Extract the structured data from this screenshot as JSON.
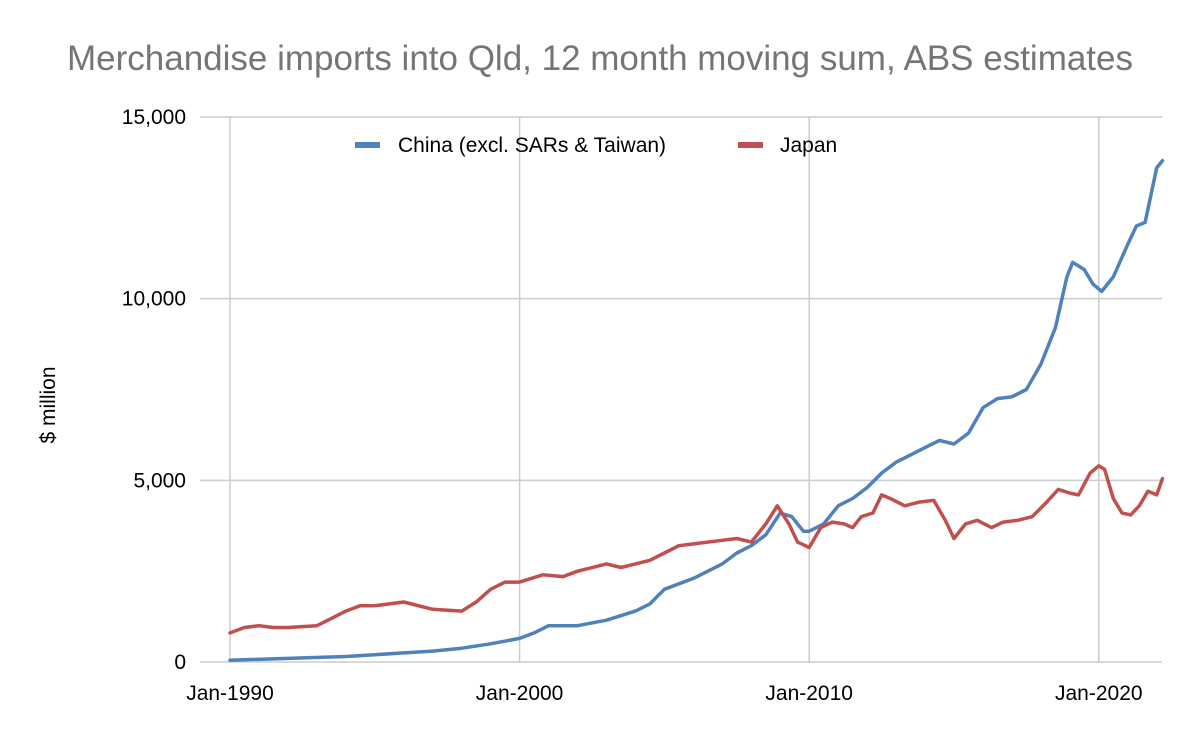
{
  "chart_data": {
    "type": "line",
    "title": "Merchandise imports into Qld, 12 month moving sum, ABS estimates",
    "xlabel": "",
    "ylabel": "$ million",
    "ylim": [
      0,
      15000
    ],
    "xlim": [
      1990.0,
      2022.2
    ],
    "y_ticks": [
      0,
      5000,
      10000,
      15000
    ],
    "y_tick_labels": [
      "0",
      "5,000",
      "10,000",
      "15,000"
    ],
    "x_ticks": [
      1990,
      2000,
      2010,
      2020
    ],
    "x_tick_labels": [
      "Jan-1990",
      "Jan-2000",
      "Jan-2010",
      "Jan-2020"
    ],
    "grid": true,
    "legend_position": "top",
    "series": [
      {
        "name": "China (excl. SARs & Taiwan)",
        "color": "#4f81bd",
        "x": [
          1990.0,
          1992.0,
          1994.0,
          1995.0,
          1996.0,
          1997.0,
          1998.0,
          1999.0,
          2000.0,
          2000.5,
          2001.0,
          2001.5,
          2002.0,
          2003.0,
          2004.0,
          2004.5,
          2005.0,
          2006.0,
          2007.0,
          2007.5,
          2008.0,
          2008.5,
          2009.0,
          2009.4,
          2009.8,
          2010.0,
          2010.5,
          2011.0,
          2011.5,
          2012.0,
          2012.5,
          2013.0,
          2013.5,
          2014.0,
          2014.5,
          2015.0,
          2015.5,
          2016.0,
          2016.5,
          2017.0,
          2017.5,
          2018.0,
          2018.5,
          2018.9,
          2019.1,
          2019.5,
          2019.8,
          2020.1,
          2020.5,
          2021.0,
          2021.3,
          2021.6,
          2022.0,
          2022.2
        ],
        "values": [
          50,
          100,
          150,
          200,
          250,
          300,
          380,
          500,
          650,
          800,
          1000,
          1000,
          1000,
          1150,
          1400,
          1600,
          2000,
          2300,
          2700,
          3000,
          3200,
          3500,
          4100,
          4000,
          3600,
          3600,
          3800,
          4300,
          4500,
          4800,
          5200,
          5500,
          5700,
          5900,
          6100,
          6000,
          6300,
          7000,
          7250,
          7300,
          7500,
          8200,
          9200,
          10600,
          11000,
          10800,
          10400,
          10200,
          10600,
          11500,
          12000,
          12100,
          13600,
          13800
        ]
      },
      {
        "name": "Japan",
        "color": "#c0504d",
        "x": [
          1990.0,
          1990.5,
          1991.0,
          1991.5,
          1992.0,
          1993.0,
          1993.5,
          1994.0,
          1994.5,
          1995.0,
          1995.5,
          1996.0,
          1997.0,
          1998.0,
          1998.5,
          1999.0,
          1999.5,
          2000.0,
          2000.8,
          2001.5,
          2002.0,
          2003.0,
          2003.5,
          2004.0,
          2004.5,
          2005.0,
          2005.5,
          2006.0,
          2007.0,
          2007.5,
          2008.0,
          2008.5,
          2008.9,
          2009.3,
          2009.6,
          2010.0,
          2010.4,
          2010.8,
          2011.2,
          2011.5,
          2011.8,
          2012.2,
          2012.5,
          2012.8,
          2013.3,
          2013.8,
          2014.3,
          2014.7,
          2015.0,
          2015.4,
          2015.8,
          2016.3,
          2016.7,
          2017.2,
          2017.7,
          2018.2,
          2018.6,
          2019.0,
          2019.3,
          2019.7,
          2020.0,
          2020.2,
          2020.5,
          2020.8,
          2021.1,
          2021.4,
          2021.7,
          2022.0,
          2022.2
        ],
        "values": [
          800,
          950,
          1000,
          950,
          950,
          1000,
          1200,
          1400,
          1550,
          1550,
          1600,
          1650,
          1450,
          1400,
          1650,
          2000,
          2200,
          2200,
          2400,
          2350,
          2500,
          2700,
          2600,
          2700,
          2800,
          3000,
          3200,
          3250,
          3350,
          3400,
          3300,
          3800,
          4300,
          3800,
          3300,
          3150,
          3700,
          3850,
          3800,
          3700,
          4000,
          4100,
          4600,
          4500,
          4300,
          4400,
          4450,
          3900,
          3400,
          3800,
          3900,
          3700,
          3850,
          3900,
          4000,
          4400,
          4750,
          4650,
          4600,
          5200,
          5400,
          5300,
          4500,
          4100,
          4050,
          4300,
          4700,
          4600,
          5050
        ]
      }
    ]
  }
}
